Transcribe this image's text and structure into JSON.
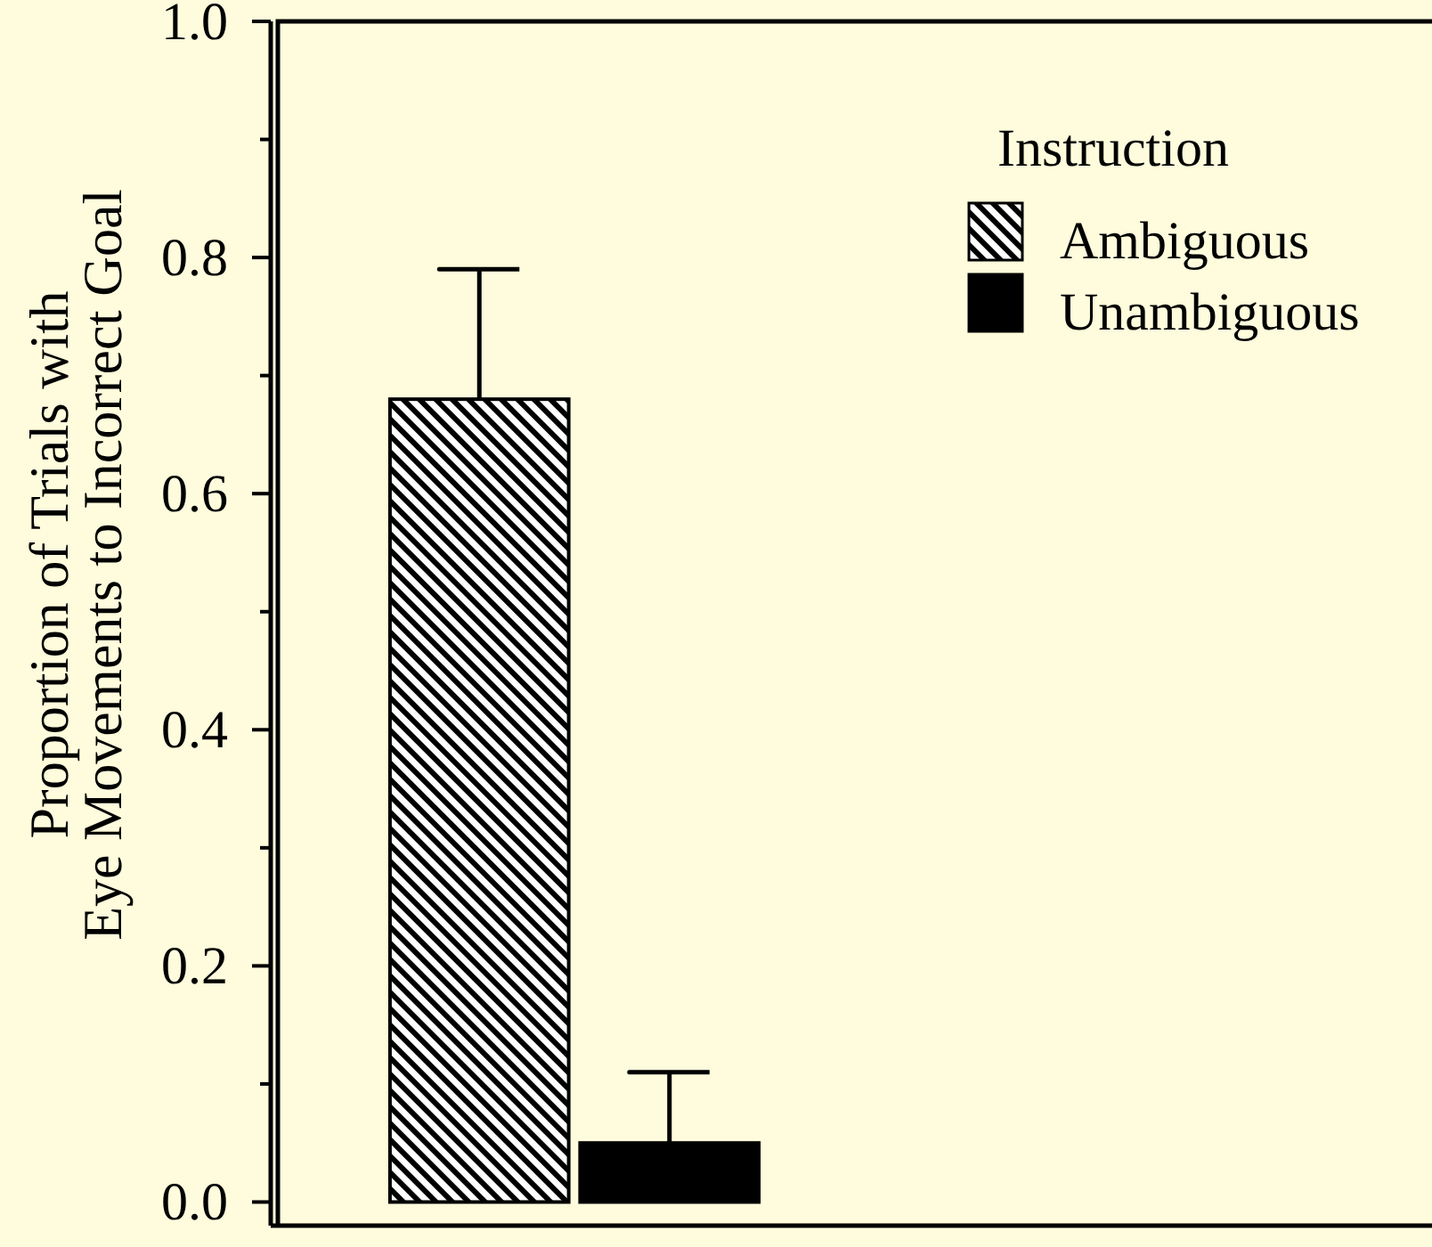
{
  "chart_data": {
    "type": "bar",
    "categories": [
      null
    ],
    "ylabel": "Proportion of Trials with\nEye Movements to Incorrect Goal",
    "legend_title": "Instruction",
    "series": [
      {
        "name": "Ambiguous",
        "color": "#000000",
        "values": [
          0.68
        ],
        "errors": [
          [
            0.68,
            0.79
          ]
        ]
      },
      {
        "name": "Unambiguous",
        "color": "#000000",
        "values": [
          0.05
        ],
        "errors": [
          [
            0.05,
            0.11
          ]
        ]
      }
    ],
    "ylim": [
      -0.02,
      1.0
    ],
    "yticks": [
      {
        "value": 0,
        "label": "0.0"
      },
      {
        "value": 0.1,
        "label": null
      },
      0.2,
      {
        "value": 0.3,
        "label": null
      },
      0.4,
      {
        "value": 0.5,
        "label": null
      },
      0.6,
      {
        "value": 0.7,
        "label": null
      },
      0.8,
      {
        "value": 0.9,
        "label": null
      },
      {
        "value": 1,
        "label": "1.0"
      }
    ],
    "tick_labels": "y",
    "legend": "top right"
  }
}
